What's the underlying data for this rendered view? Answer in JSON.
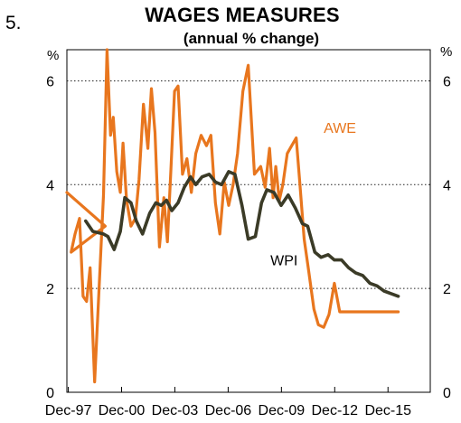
{
  "figure_number": "5.",
  "chart_data": {
    "type": "line",
    "title": "WAGES MEASURES",
    "subtitle": "(annual % change)",
    "y_unit_left": "%",
    "y_unit_right": "%",
    "ylim": [
      0,
      6.6
    ],
    "y_ticks": [
      0,
      2,
      4,
      6
    ],
    "grid": "horizontal dotted at 2, 4, 6",
    "x_tick_labels": [
      "Dec-97",
      "Dec-00",
      "Dec-03",
      "Dec-06",
      "Dec-09",
      "Dec-12",
      "Dec-15"
    ],
    "x_tick_years": [
      1997.92,
      2000.92,
      2003.92,
      2006.92,
      2009.92,
      2012.92,
      2015.92
    ],
    "xlim": [
      1997.84,
      2018.3
    ],
    "colors": {
      "AWE": "#e8761e",
      "WPI": "#3b3b27"
    },
    "series": [
      {
        "name": "AWE",
        "x": [
          1997.84,
          2000.0,
          1998.08,
          1998.3,
          1998.55,
          1998.75,
          1998.95,
          1999.15,
          1999.4,
          1999.65,
          1999.9,
          2000.1,
          2000.3,
          2000.45,
          2000.65,
          2000.85,
          2001.0,
          2001.2,
          2001.45,
          2001.7,
          2001.9,
          2002.15,
          2002.4,
          2002.6,
          2002.8,
          2003.05,
          2003.3,
          2003.5,
          2003.7,
          2003.9,
          2004.1,
          2004.35,
          2004.6,
          2004.85,
          2005.1,
          2005.4,
          2005.7,
          2005.95,
          2006.2,
          2006.45,
          2006.7,
          2006.95,
          2007.2,
          2007.45,
          2007.75,
          2008.05,
          2008.4,
          2008.75,
          2009.0,
          2009.25,
          2009.45,
          2009.6,
          2009.8,
          2010.0,
          2010.25,
          2010.5,
          2010.75,
          2010.95,
          2011.2,
          2011.45,
          2011.75,
          2012.0,
          2012.3,
          2012.6,
          2012.9,
          2013.2,
          2013.55,
          2013.9,
          2014.3,
          2014.7,
          2015.1,
          2015.5,
          2015.85,
          2016.2,
          2016.5
        ],
        "values": [
          3.85,
          3.2,
          2.7,
          3.05,
          3.35,
          1.85,
          1.75,
          2.4,
          0.2,
          2.0,
          3.8,
          6.6,
          4.95,
          5.3,
          4.25,
          3.85,
          4.8,
          3.7,
          3.2,
          3.35,
          4.1,
          5.55,
          4.7,
          5.85,
          5.0,
          2.8,
          3.75,
          2.9,
          4.3,
          5.8,
          5.9,
          4.2,
          4.5,
          3.85,
          4.6,
          4.95,
          4.75,
          4.95,
          3.65,
          3.05,
          4.05,
          3.6,
          4.0,
          4.6,
          5.8,
          6.3,
          4.2,
          4.35,
          3.95,
          4.7,
          3.75,
          4.35,
          3.7,
          4.0,
          4.6,
          4.75,
          4.9,
          4.05,
          2.95,
          2.35,
          1.6,
          1.3,
          1.25,
          1.5,
          2.1,
          1.55,
          1.55,
          1.55,
          1.55,
          1.55,
          1.55,
          1.55,
          1.55,
          1.55,
          1.55
        ],
        "label_x": 2012.3,
        "label_y": 5.0
      },
      {
        "name": "WPI",
        "x": [
          1998.9,
          1999.3,
          1999.9,
          2000.15,
          2000.5,
          2000.85,
          2001.1,
          2001.45,
          2001.75,
          2002.1,
          2002.5,
          2002.85,
          2003.15,
          2003.45,
          2003.75,
          2004.1,
          2004.45,
          2004.8,
          2005.1,
          2005.45,
          2005.85,
          2006.2,
          2006.55,
          2006.95,
          2007.3,
          2007.7,
          2008.05,
          2008.45,
          2008.8,
          2009.1,
          2009.5,
          2009.9,
          2010.3,
          2010.7,
          2011.1,
          2011.4,
          2011.8,
          2012.15,
          2012.55,
          2012.9,
          2013.3,
          2013.7,
          2014.1,
          2014.5,
          2014.9,
          2015.3,
          2015.7,
          2016.1,
          2016.5
        ],
        "values": [
          3.3,
          3.1,
          3.05,
          3.0,
          2.75,
          3.1,
          3.75,
          3.65,
          3.3,
          3.05,
          3.45,
          3.65,
          3.6,
          3.7,
          3.5,
          3.65,
          3.95,
          4.15,
          4.0,
          4.15,
          4.2,
          4.05,
          4.0,
          4.25,
          4.2,
          3.6,
          2.95,
          3.0,
          3.65,
          3.9,
          3.85,
          3.6,
          3.8,
          3.55,
          3.25,
          3.2,
          2.7,
          2.6,
          2.65,
          2.55,
          2.55,
          2.4,
          2.3,
          2.25,
          2.1,
          2.05,
          1.95,
          1.9,
          1.85
        ],
        "label_x": 2009.3,
        "label_y": 2.45
      }
    ]
  }
}
